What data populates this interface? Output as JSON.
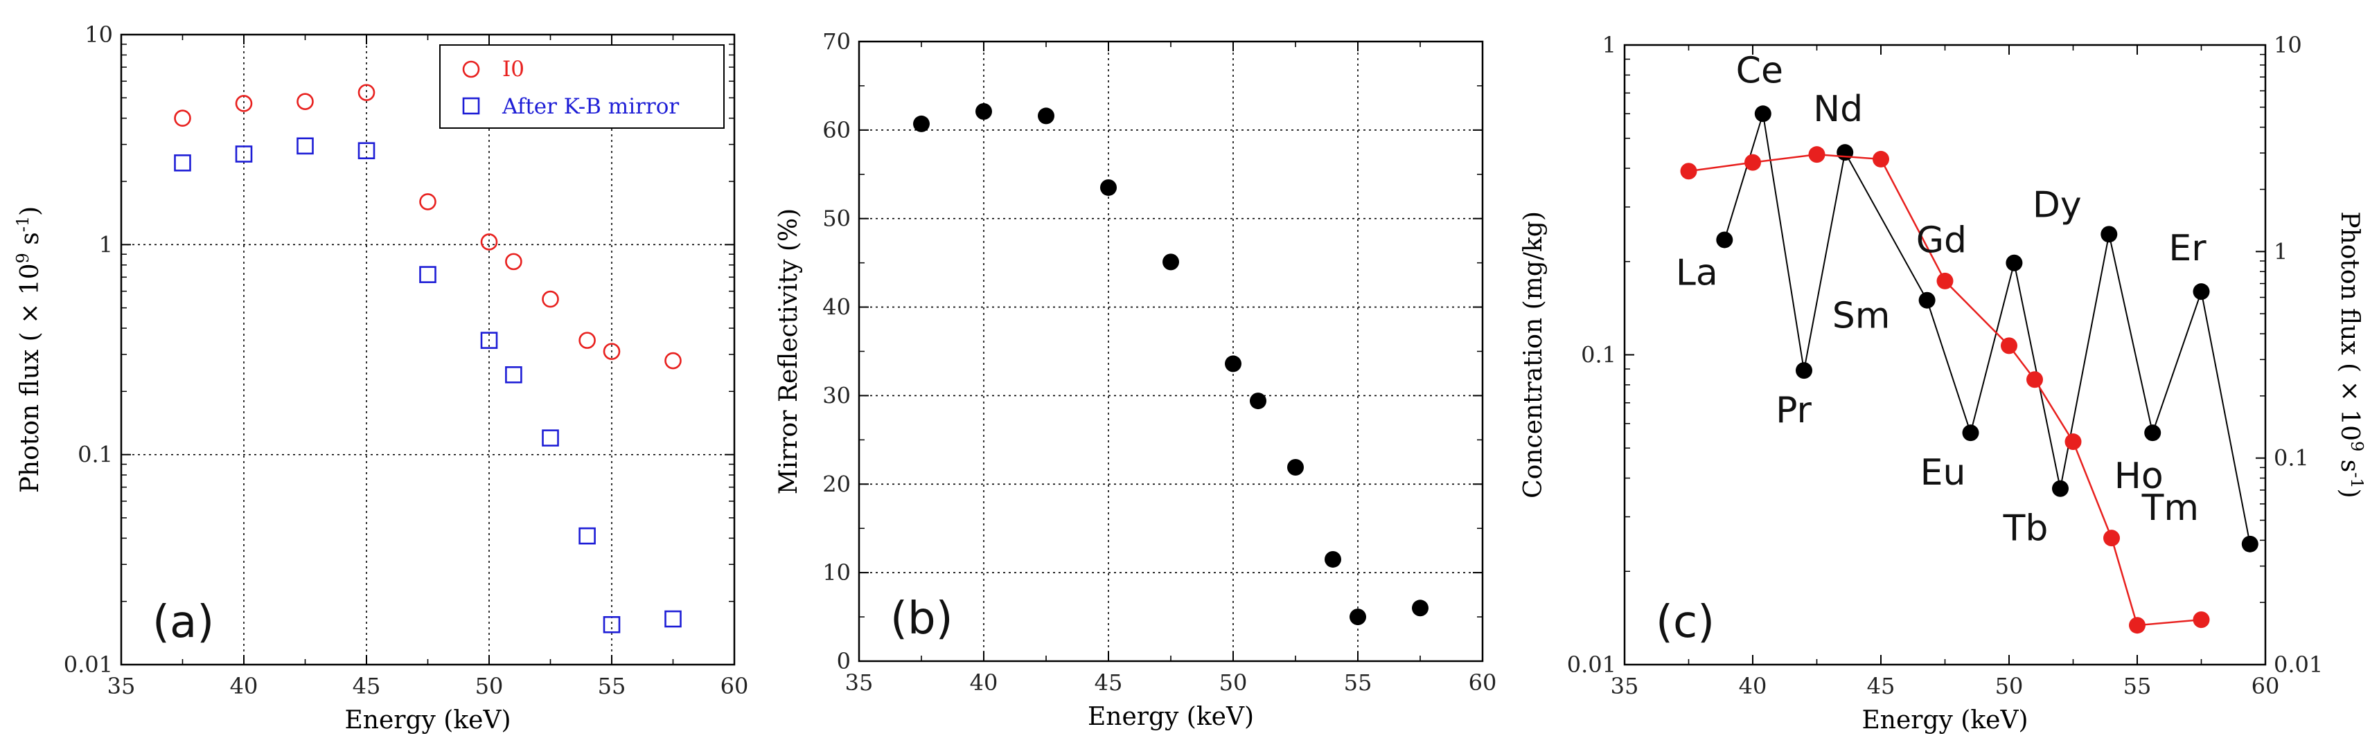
{
  "chart_data": [
    {
      "id": "a",
      "type": "scatter",
      "panel_label": "(a)",
      "xlabel": "Energy (keV)",
      "ylabel_pre": "Photon flux ( × 10",
      "ylabel_sup": "9",
      "ylabel_post": " s",
      "ylabel_sup2": "-1",
      "ylabel_end": ")",
      "xlim": [
        35,
        60
      ],
      "ylim": [
        0.01,
        10
      ],
      "yscale": "log",
      "grid": true,
      "legend_position": "top-right",
      "xticks": [
        35,
        40,
        45,
        50,
        55,
        60
      ],
      "xtick_labels": [
        "35",
        "40",
        "45",
        "50",
        "55",
        "60"
      ],
      "yticks": [
        0.01,
        0.1,
        1,
        10
      ],
      "ytick_labels": [
        "0.01",
        "0.1",
        "1",
        "10"
      ],
      "series": [
        {
          "name": "I0",
          "marker": "circle",
          "color": "#e8201e",
          "x": [
            37.5,
            40,
            42.5,
            45,
            47.5,
            50,
            51,
            52.5,
            54,
            55,
            57.5
          ],
          "y": [
            4.0,
            4.7,
            4.8,
            5.3,
            1.6,
            1.03,
            0.83,
            0.55,
            0.35,
            0.31,
            0.28
          ]
        },
        {
          "name": "After K-B mirror",
          "marker": "square",
          "color": "#1d1dd6",
          "x": [
            37.5,
            40,
            42.5,
            45,
            47.5,
            50,
            51,
            52.5,
            54,
            55,
            57.5
          ],
          "y": [
            2.45,
            2.7,
            2.95,
            2.8,
            0.72,
            0.35,
            0.24,
            0.12,
            0.041,
            0.0155,
            0.0165
          ]
        }
      ]
    },
    {
      "id": "b",
      "type": "scatter",
      "panel_label": "(b)",
      "xlabel": "Energy (keV)",
      "ylabel": "Mirror Reflectivity (%)",
      "xlim": [
        35,
        60
      ],
      "ylim": [
        0,
        70
      ],
      "grid": true,
      "xticks": [
        35,
        40,
        45,
        50,
        55,
        60
      ],
      "xtick_labels": [
        "35",
        "40",
        "45",
        "50",
        "55",
        "60"
      ],
      "yticks": [
        0,
        10,
        20,
        30,
        40,
        50,
        60,
        70
      ],
      "ytick_labels": [
        "0",
        "10",
        "20",
        "30",
        "40",
        "50",
        "60",
        "70"
      ],
      "series": [
        {
          "name": "Reflectivity",
          "marker": "filled-circle",
          "color": "#000000",
          "x": [
            37.5,
            40,
            42.5,
            45,
            47.5,
            50,
            51,
            52.5,
            54,
            55,
            57.5
          ],
          "y": [
            60.7,
            62.1,
            61.6,
            53.5,
            45.1,
            33.6,
            29.4,
            21.9,
            11.5,
            5.0,
            6.0
          ]
        }
      ]
    },
    {
      "id": "c",
      "type": "line",
      "panel_label": "(c)",
      "xlabel": "Energy (keV)",
      "ylabel": "Concentration (mg/kg)",
      "ylabel2_pre": "Photon flux ( × 10",
      "ylabel2_sup": "9",
      "ylabel2_post": " s",
      "ylabel2_sup2": "-1",
      "ylabel2_end": ")",
      "xlim": [
        35,
        60
      ],
      "ylim": [
        0.01,
        1
      ],
      "yscale": "log",
      "y2lim": [
        0.01,
        10
      ],
      "y2scale": "log",
      "grid": false,
      "xticks": [
        35,
        40,
        45,
        50,
        55,
        60
      ],
      "xtick_labels": [
        "35",
        "40",
        "45",
        "50",
        "55",
        "60"
      ],
      "yticks": [
        0.01,
        0.1,
        1
      ],
      "ytick_labels": [
        "0.01",
        "0.1",
        "1"
      ],
      "y2ticks": [
        0.01,
        0.1,
        1,
        10
      ],
      "y2tick_labels": [
        "0.01",
        "0.1",
        "1",
        "10"
      ],
      "series": [
        {
          "name": "Concentration",
          "axis": "left",
          "color": "#000000",
          "marker": "filled-circle",
          "x": [
            38.9,
            40.4,
            42.0,
            43.6,
            46.8,
            48.5,
            50.2,
            52.0,
            53.9,
            55.6,
            57.5,
            59.4
          ],
          "y": [
            0.235,
            0.6,
            0.089,
            0.45,
            0.15,
            0.056,
            0.198,
            0.037,
            0.245,
            0.056,
            0.16,
            0.0245
          ],
          "labels": [
            "La",
            "Ce",
            "Pr",
            "Nd",
            "Sm",
            "Eu",
            "Gd",
            "Tb",
            "Dy",
            "Ho",
            "Er",
            "Tm"
          ]
        },
        {
          "name": "Photon flux",
          "axis": "right",
          "color": "#e8201e",
          "marker": "filled-circle",
          "x": [
            37.5,
            40,
            42.5,
            45,
            47.5,
            50,
            51,
            52.5,
            54,
            55,
            57.5
          ],
          "y": [
            2.45,
            2.7,
            2.95,
            2.8,
            0.72,
            0.35,
            0.24,
            0.12,
            0.041,
            0.0155,
            0.0165
          ]
        }
      ]
    }
  ]
}
